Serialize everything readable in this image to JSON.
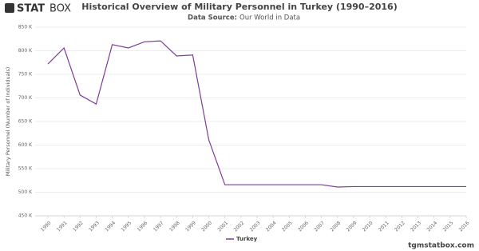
{
  "brand": {
    "logo_bold": "STAT",
    "logo_light": "BOX",
    "footer": "tgmstatbox.com"
  },
  "chart_data": {
    "type": "line",
    "title": "Historical Overview of Military Personnel in Turkey (1990–2016)",
    "subtitle_label": "Data Source:",
    "subtitle": "Our World in Data",
    "y_label": "Military Personnel (Number of Individuals)",
    "categories": [
      "1990",
      "1991",
      "1992",
      "1993",
      "1994",
      "1995",
      "1996",
      "1997",
      "1998",
      "1999",
      "2000",
      "2001",
      "2002",
      "2003",
      "2004",
      "2005",
      "2006",
      "2007",
      "2008",
      "2009",
      "2010",
      "2011",
      "2012",
      "2013",
      "2014",
      "2015",
      "2016"
    ],
    "series": [
      {
        "name": "Turkey",
        "color": "#7d3c98",
        "values": [
          772000,
          806000,
          706000,
          687000,
          813000,
          806000,
          819000,
          821000,
          789000,
          791000,
          611000,
          516000,
          516000,
          516000,
          516000,
          516000,
          516000,
          516000,
          511000,
          512000,
          512000,
          512000,
          512000,
          512000,
          512000,
          512000,
          512000
        ]
      }
    ],
    "ylim": [
      450000,
      850000
    ],
    "yticks": [
      {
        "value": 450000,
        "label": "450 K"
      },
      {
        "value": 500000,
        "label": "500 K"
      },
      {
        "value": 550000,
        "label": "550 K"
      },
      {
        "value": 600000,
        "label": "600 K"
      },
      {
        "value": 650000,
        "label": "650 K"
      },
      {
        "value": 700000,
        "label": "700 K"
      },
      {
        "value": 750000,
        "label": "750 K"
      },
      {
        "value": 800000,
        "label": "800 K"
      },
      {
        "value": 850000,
        "label": "850 K"
      }
    ],
    "grid": true,
    "legend": "bottom"
  }
}
